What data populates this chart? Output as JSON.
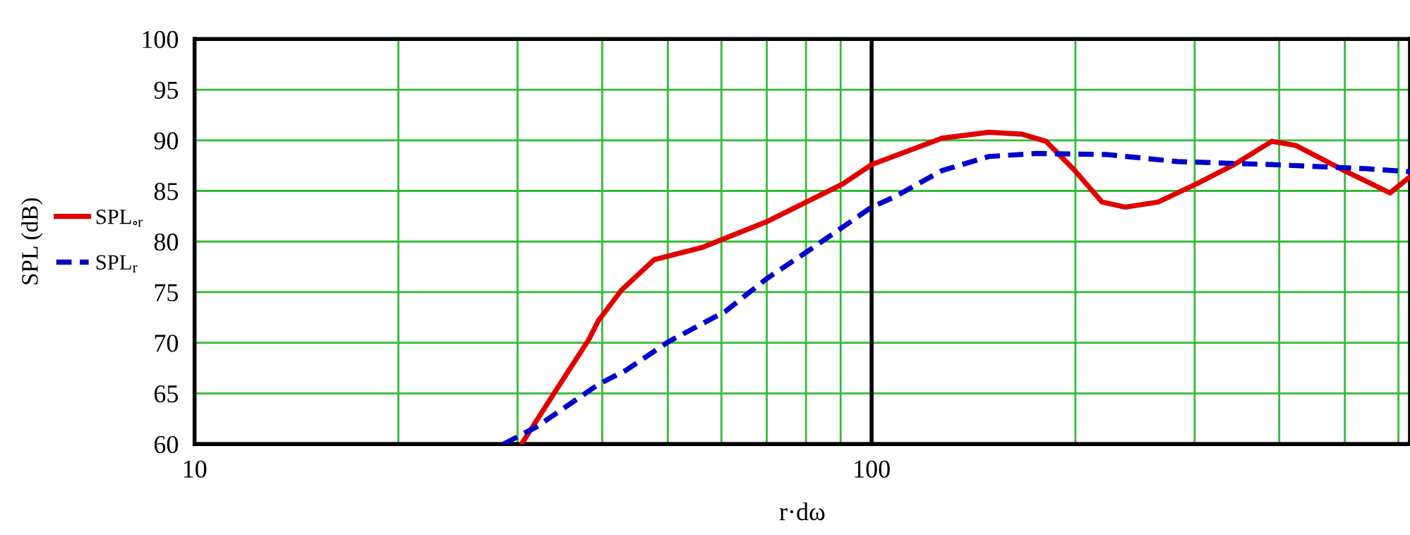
{
  "chart_data": {
    "type": "line",
    "xlabel": "r·dω",
    "ylabel": "SPL (dB)",
    "log": "x",
    "grid": true,
    "legend": "left",
    "xlim": [
      10,
      624
    ],
    "ylim": [
      60,
      100
    ],
    "xticks": [
      10,
      {
        "value": 20,
        "label": null
      },
      {
        "value": 30,
        "label": null
      },
      {
        "value": 40,
        "label": null
      },
      {
        "value": 50,
        "label": null
      },
      {
        "value": 60,
        "label": null
      },
      {
        "value": 70,
        "label": null
      },
      {
        "value": 80,
        "label": null
      },
      {
        "value": 90,
        "label": null
      },
      100,
      {
        "value": 200,
        "label": null
      },
      {
        "value": 300,
        "label": null
      },
      {
        "value": 400,
        "label": null
      },
      {
        "value": 500,
        "label": null
      },
      {
        "value": 600,
        "label": null
      }
    ],
    "yticks": [
      60,
      65,
      70,
      75,
      80,
      85,
      90,
      95,
      100
    ],
    "ref_lines": [
      {
        "axis": "x",
        "value": 100,
        "color": "#000000"
      }
    ],
    "series": [
      {
        "name": "SPL$_{∘r}$",
        "color": "#e00000",
        "line_style": "solid",
        "x": [
          30.4,
          34.1,
          38.2,
          39.5,
          42.7,
          47.7,
          56.1,
          70.2,
          90.7,
          100,
          127,
          149,
          167,
          181,
          199,
          219,
          237,
          265,
          302,
          343,
          390,
          423,
          496,
          583,
          624
        ],
        "values": [
          60,
          65.2,
          70.3,
          72.2,
          75.2,
          78.2,
          79.4,
          82.0,
          85.7,
          87.6,
          90.2,
          90.8,
          90.6,
          89.9,
          87.1,
          83.9,
          83.4,
          83.9,
          85.7,
          87.6,
          89.9,
          89.5,
          87.1,
          84.8,
          86.4
        ]
      },
      {
        "name": "SPL$_{r}$",
        "color": "#0000cc",
        "line_style": "dashed",
        "x": [
          28.6,
          32.0,
          39.5,
          43.4,
          50.1,
          60.8,
          70.2,
          81.1,
          100,
          108,
          127,
          149,
          175,
          222,
          283,
          390,
          537,
          624
        ],
        "values": [
          60,
          61.7,
          65.9,
          67.3,
          70.1,
          73.1,
          76.4,
          79.2,
          83.4,
          84.4,
          87.0,
          88.4,
          88.7,
          88.6,
          87.9,
          87.6,
          87.2,
          86.9
        ]
      }
    ]
  }
}
